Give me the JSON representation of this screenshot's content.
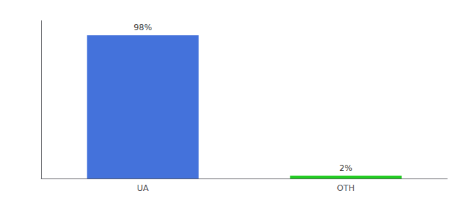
{
  "chart_data": {
    "type": "bar",
    "categories": [
      "UA",
      "OTH"
    ],
    "values": [
      98,
      2
    ],
    "value_labels": [
      "98%",
      "2%"
    ],
    "colors": [
      "#4472db",
      "#22cc22"
    ],
    "ylim": [
      0,
      108
    ],
    "grid": false,
    "data_labels": true,
    "tick_labels": "x"
  }
}
